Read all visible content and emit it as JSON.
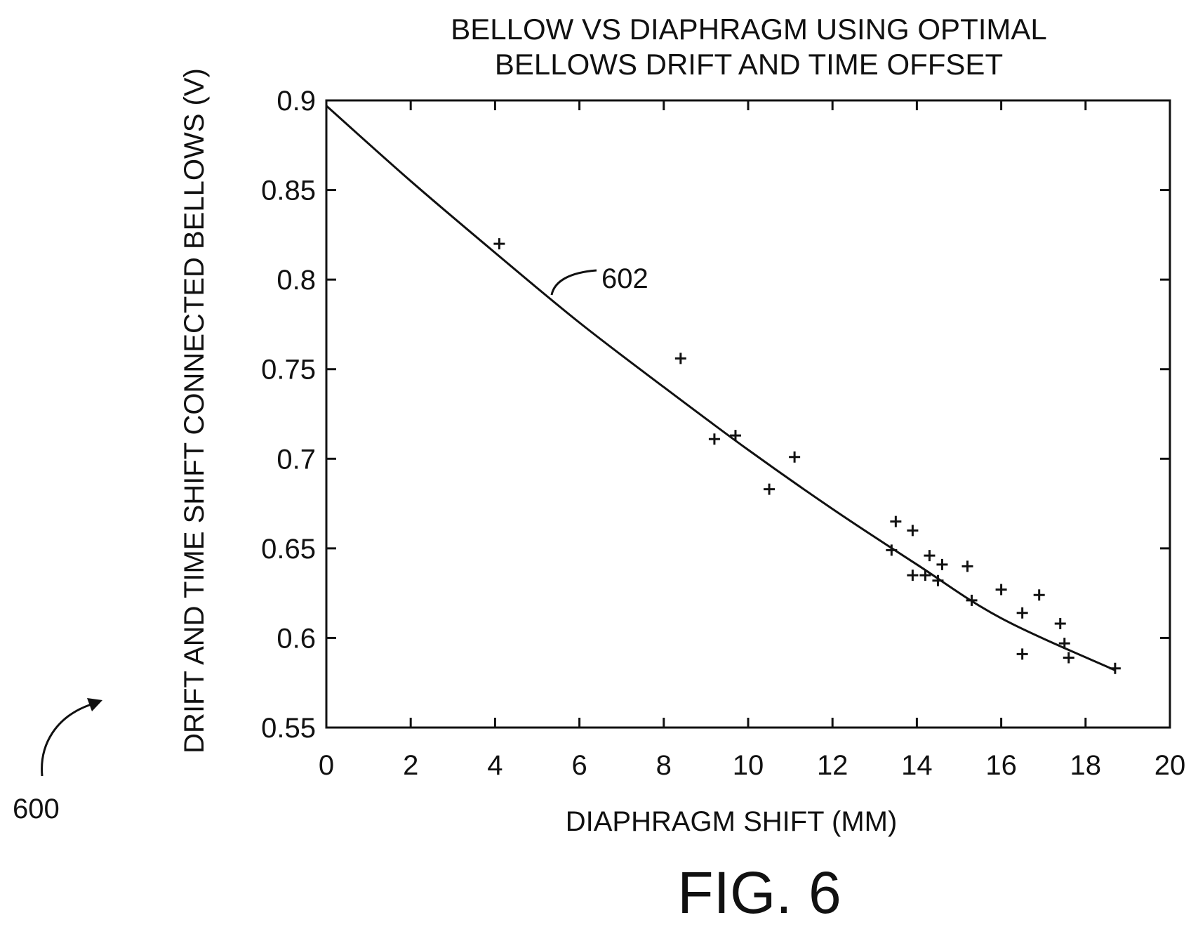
{
  "figure": {
    "label": "FIG. 6",
    "reference_numeral": "600"
  },
  "chart_data": {
    "type": "scatter",
    "title_lines": [
      "BELLOW  VS DIAPHRAGM  USING OPTIMAL",
      "BELLOWS DRIFT AND  TIME OFFSET"
    ],
    "xlabel": "DIAPHRAGM  SHIFT (MM)",
    "ylabel": "DRIFT AND TIME SHIFT CONNECTED BELLOWS (V)",
    "xlim": [
      0,
      20
    ],
    "ylim": [
      0.55,
      0.9
    ],
    "xticks": [
      0,
      2,
      4,
      6,
      8,
      10,
      12,
      14,
      16,
      18,
      20
    ],
    "yticks": [
      0.55,
      0.6,
      0.65,
      0.7,
      0.75,
      0.8,
      0.85,
      0.9
    ],
    "grid": false,
    "series": [
      {
        "kind": "markers",
        "marker": "plus",
        "points": [
          [
            4.1,
            0.82
          ],
          [
            8.4,
            0.756
          ],
          [
            9.2,
            0.711
          ],
          [
            9.7,
            0.713
          ],
          [
            10.5,
            0.683
          ],
          [
            11.1,
            0.701
          ],
          [
            13.4,
            0.649
          ],
          [
            13.5,
            0.665
          ],
          [
            13.9,
            0.66
          ],
          [
            13.9,
            0.635
          ],
          [
            14.2,
            0.635
          ],
          [
            14.3,
            0.646
          ],
          [
            14.5,
            0.632
          ],
          [
            14.6,
            0.641
          ],
          [
            15.2,
            0.64
          ],
          [
            15.3,
            0.621
          ],
          [
            16.0,
            0.627
          ],
          [
            16.5,
            0.614
          ],
          [
            16.5,
            0.591
          ],
          [
            16.9,
            0.624
          ],
          [
            17.4,
            0.608
          ],
          [
            17.5,
            0.597
          ],
          [
            17.6,
            0.589
          ],
          [
            18.7,
            0.583
          ]
        ]
      },
      {
        "kind": "line",
        "label": "602",
        "points": [
          [
            0,
            0.897
          ],
          [
            2,
            0.855
          ],
          [
            4,
            0.815
          ],
          [
            6,
            0.776
          ],
          [
            8,
            0.74
          ],
          [
            10,
            0.705
          ],
          [
            12,
            0.672
          ],
          [
            14,
            0.641
          ],
          [
            16,
            0.611
          ],
          [
            18.7,
            0.582
          ]
        ]
      }
    ]
  }
}
